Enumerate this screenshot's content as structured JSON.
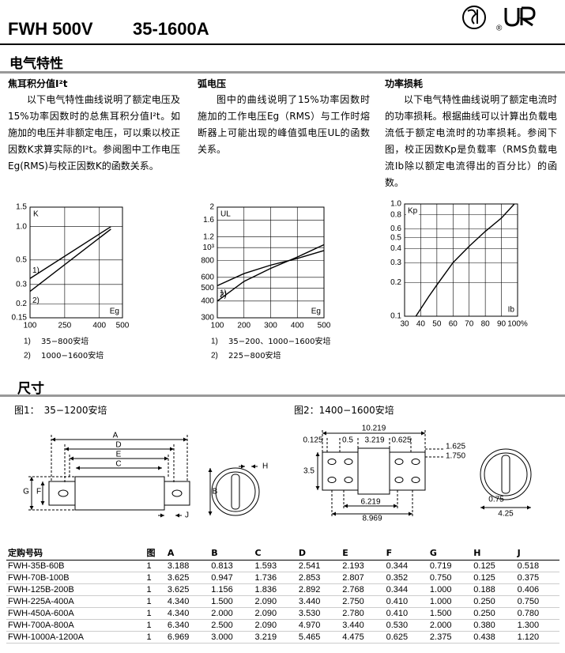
{
  "header": {
    "title": "FWH 500V",
    "subtitle": "35-1600A"
  },
  "electrical": {
    "title": "电气特性",
    "columns": [
      {
        "heading": "焦耳积分值I²t",
        "text": "以下电气特性曲线说明了额定电压及15%功率因数时的总焦耳积分值I²t。如施加的电压并非额定电压，可以乘以校正因数K求算实际的I²t。参阅图中工作电压Eg(RMS)与校正因数K的函数关系。"
      },
      {
        "heading": "弧电压",
        "text": "图中的曲线说明了15%功率因数时施加的工作电压Eg（RMS）与工作时熔断器上可能出现的峰值弧电压UL的函数关系。"
      },
      {
        "heading": "功率损耗",
        "text": "以下电气特性曲线说明了额定电流时的功率损耗。根据曲线可以计算出负载电流低于额定电流时的功率损耗。参阅下图，校正因数Kp是负载率（RMS负载电流Ib除以额定电流得出的百分比）的函数。"
      }
    ]
  },
  "chart_data": [
    {
      "type": "line",
      "y_label": "K",
      "x_label": "Eg",
      "y_scale": "log",
      "grid": true,
      "xlim": [
        100,
        500
      ],
      "xticks": [
        100,
        250,
        400,
        500
      ],
      "ylim": [
        0.15,
        1.5
      ],
      "yticks": [
        1.5,
        {
          "value": 1,
          "label": "1.0"
        },
        0.5,
        0.3,
        0.2,
        0.15
      ],
      "series": [
        {
          "label": "1)",
          "name": "35−800安培",
          "color": "#000000",
          "x": [
            100,
            450
          ],
          "values": [
            0.34,
            1.0
          ]
        },
        {
          "label": "2)",
          "name": "1000−1600安培",
          "color": "#000000",
          "x": [
            100,
            450
          ],
          "values": [
            0.26,
            0.95
          ]
        }
      ]
    },
    {
      "type": "line",
      "y_label": "UL",
      "x_label": "Eg",
      "y_scale": "log",
      "grid": true,
      "xlim": [
        100,
        500
      ],
      "xticks": [
        100,
        200,
        300,
        400,
        500
      ],
      "ylim": [
        300,
        2000
      ],
      "yticks": [
        {
          "value": 2000,
          "label": "2"
        },
        {
          "value": 1600,
          "label": "1.6"
        },
        {
          "value": 1200,
          "label": "1.2"
        },
        {
          "value": 1000,
          "label": "10³"
        },
        800,
        600,
        500,
        400,
        300
      ],
      "series": [
        {
          "label": "1)",
          "name": "35−200、1000−1600安培",
          "color": "#000000",
          "x": [
            100,
            200,
            300,
            400,
            500
          ],
          "values": [
            400,
            560,
            700,
            850,
            1050
          ]
        },
        {
          "label": "2)",
          "name": "225−800安培",
          "color": "#000000",
          "x": [
            100,
            200,
            300,
            400,
            500
          ],
          "values": [
            520,
            640,
            740,
            830,
            950
          ]
        }
      ]
    },
    {
      "type": "line",
      "y_label": "Kp",
      "x_label": "Ib",
      "y_scale": "log",
      "grid": true,
      "xlim": [
        30,
        100
      ],
      "xticks": [
        30,
        40,
        50,
        60,
        70,
        80,
        90,
        {
          "value": 100,
          "label": "100%"
        }
      ],
      "ylim": [
        0.1,
        1.0
      ],
      "yticks": [
        {
          "value": 1,
          "label": "1.0"
        },
        0.8,
        0.6,
        0.5,
        0.4,
        0.3,
        0.2,
        0.1
      ],
      "series": [
        {
          "color": "#000000",
          "x": [
            37,
            45,
            50,
            60,
            70,
            80,
            90,
            98
          ],
          "values": [
            0.1,
            0.15,
            0.19,
            0.3,
            0.42,
            0.57,
            0.75,
            1.0
          ]
        }
      ]
    }
  ],
  "dimensions": {
    "title": "尺寸",
    "figures": [
      {
        "caption": "图1：　35−1200安培",
        "labels": [
          "A",
          "B",
          "C",
          "D",
          "E",
          "F",
          "G",
          "H",
          "J"
        ]
      },
      {
        "caption": "图2：1400−1600安培",
        "labels": [
          "10.219",
          "0.125",
          "0.5",
          "3.219",
          "0.625",
          "1.625",
          "1.750",
          "3.5",
          "6.219",
          "8.969",
          "0.75",
          "4.25"
        ]
      }
    ]
  },
  "table": {
    "columns": [
      "定购号码",
      "图",
      "A",
      "B",
      "C",
      "D",
      "E",
      "F",
      "G",
      "H",
      "J"
    ],
    "rows": [
      [
        "FWH-35B-60B",
        "1",
        "3.188",
        "0.813",
        "1.593",
        "2.541",
        "2.193",
        "0.344",
        "0.719",
        "0.125",
        "0.518"
      ],
      [
        "FWH-70B-100B",
        "1",
        "3.625",
        "0.947",
        "1.736",
        "2.853",
        "2.807",
        "0.352",
        "0.750",
        "0.125",
        "0.375"
      ],
      [
        "FWH-125B-200B",
        "1",
        "3.625",
        "1.156",
        "1.836",
        "2.892",
        "2.768",
        "0.344",
        "1.000",
        "0.188",
        "0.406"
      ],
      [
        "FWH-225A-400A",
        "1",
        "4.340",
        "1.500",
        "2.090",
        "3.440",
        "2.750",
        "0.410",
        "1.000",
        "0.250",
        "0.750"
      ],
      [
        "FWH-450A-600A",
        "1",
        "4.340",
        "2.000",
        "2.090",
        "3.530",
        "2.780",
        "0.410",
        "1.500",
        "0.250",
        "0.780"
      ],
      [
        "FWH-700A-800A",
        "1",
        "6.340",
        "2.500",
        "2.090",
        "4.970",
        "3.440",
        "0.530",
        "2.000",
        "0.380",
        "1.300"
      ],
      [
        "FWH-1000A-1200A",
        "1",
        "6.969",
        "3.000",
        "3.219",
        "5.465",
        "4.475",
        "0.625",
        "2.375",
        "0.438",
        "1.120"
      ]
    ]
  }
}
